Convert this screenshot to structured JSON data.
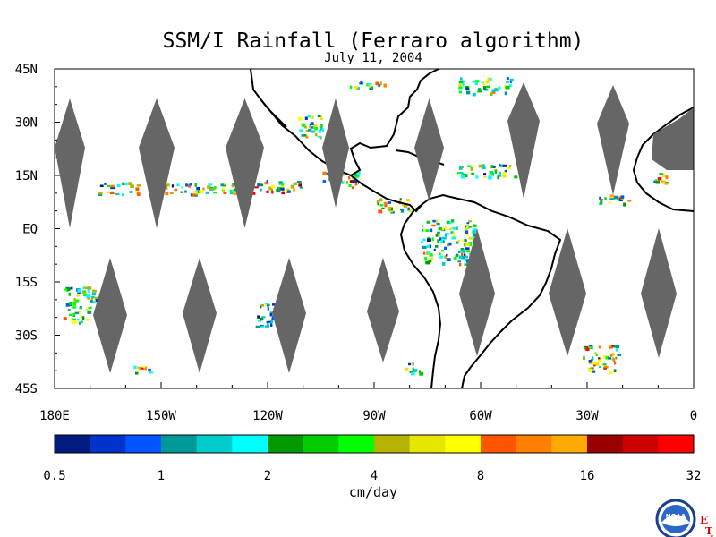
{
  "title": "SSM/I Rainfall (Ferraro algorithm)",
  "subtitle": "July 11, 2004",
  "lat_labels": [
    "45N",
    "30N",
    "15N",
    "EQ",
    "15S",
    "30S",
    "45S"
  ],
  "lat_values": [
    45,
    30,
    15,
    0,
    -15,
    -30,
    -45
  ],
  "lon_labels": [
    "180E",
    "150W",
    "120W",
    "90W",
    "60W",
    "30W",
    "0"
  ],
  "lon_values": [
    -180,
    -150,
    -120,
    -90,
    -60,
    -30,
    0
  ],
  "map_extent": {
    "lon": [
      -180,
      0
    ],
    "lat": [
      -45,
      45
    ]
  },
  "no_data_color": "#666666",
  "colorbar": {
    "tick_labels": [
      "0.5",
      "1",
      "2",
      "4",
      "8",
      "16",
      "32"
    ],
    "unit": "cm/day",
    "colors": [
      "#001a80",
      "#0033cc",
      "#0055ff",
      "#009999",
      "#00cccc",
      "#00ffff",
      "#009900",
      "#00cc00",
      "#00ff00",
      "#b3b300",
      "#e6e600",
      "#ffff00",
      "#ff5500",
      "#ff8000",
      "#ffaa00",
      "#990000",
      "#cc0000",
      "#ff0000"
    ]
  },
  "logo": {
    "text": "NOAA",
    "letters": [
      "E",
      "T",
      "L"
    ]
  }
}
